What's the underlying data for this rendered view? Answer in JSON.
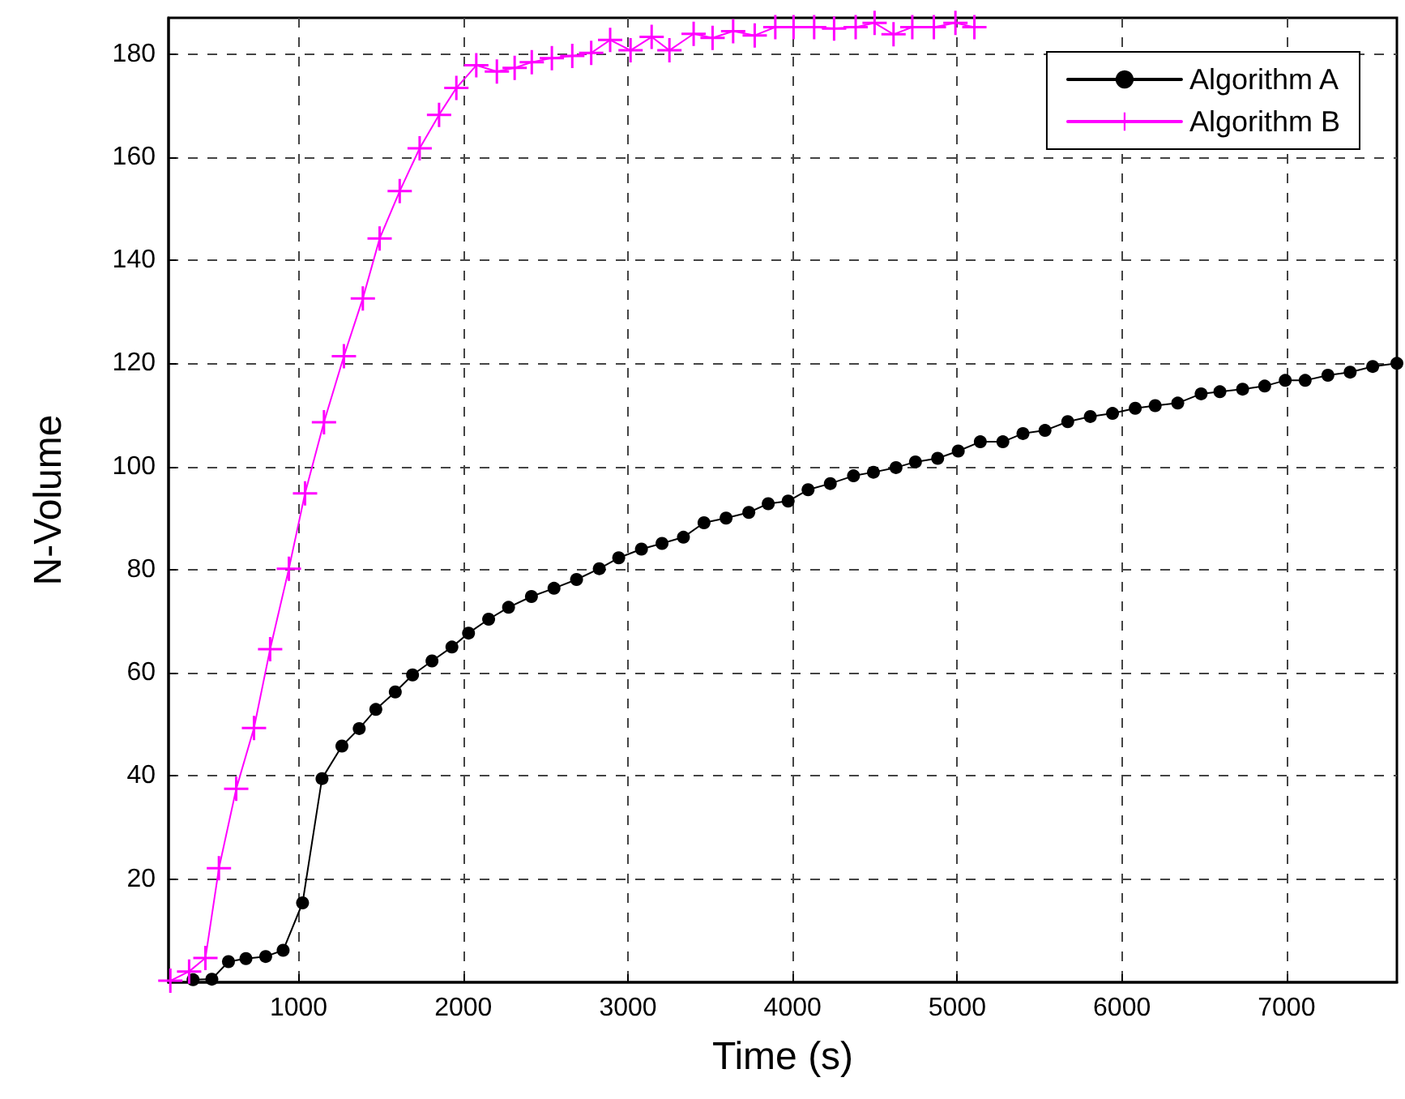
{
  "chart_data": {
    "type": "line",
    "xlabel": "Time (s)",
    "ylabel": "N-Volume",
    "xlim": [
      210,
      7670
    ],
    "xticks": [
      1000,
      2000,
      3000,
      4000,
      5000,
      6000,
      7000
    ],
    "ylim": [
      0,
      187
    ],
    "yticks": [
      20,
      40,
      60,
      80,
      100,
      120,
      140,
      160,
      180
    ],
    "grid": true,
    "legend": "top right",
    "line_style": "solid",
    "series": [
      {
        "name": "Algorithm A",
        "color": "#000000",
        "marker": "circle",
        "x": [
          359,
          473,
          574,
          680,
          800,
          906,
          1024,
          1142,
          1263,
          1368,
          1469,
          1587,
          1692,
          1810,
          1931,
          2032,
          2154,
          2275,
          2414,
          2551,
          2688,
          2826,
          2944,
          3082,
          3207,
          3337,
          3462,
          3596,
          3734,
          3852,
          3973,
          4094,
          4229,
          4370,
          4491,
          4628,
          4746,
          4881,
          5006,
          5140,
          5277,
          5399,
          5533,
          5671,
          5808,
          5943,
          6081,
          6202,
          6339,
          6481,
          6595,
          6733,
          6867,
          6992,
          7113,
          7251,
          7386,
          7523,
          7670
        ],
        "values": [
          0.5,
          0.6,
          4,
          4.6,
          5,
          6.2,
          15.4,
          39.5,
          45.8,
          49.2,
          52.9,
          56.3,
          59.6,
          62.3,
          65,
          67.7,
          70.4,
          72.7,
          74.8,
          76.4,
          78.1,
          80.2,
          82.3,
          84,
          85.1,
          86.3,
          89.1,
          90,
          91.1,
          92.8,
          93.3,
          95.5,
          96.7,
          98.2,
          98.9,
          99.8,
          100.9,
          101.6,
          103,
          104.8,
          104.8,
          106.4,
          107,
          108.7,
          109.7,
          110.3,
          111.3,
          111.8,
          112.3,
          114.1,
          114.5,
          115,
          115.6,
          116.7,
          116.7,
          117.7,
          118.3,
          119.4,
          120
        ]
      },
      {
        "name": "Algorithm B",
        "color": "#ff00ff",
        "marker": "cross",
        "x": [
          221,
          335,
          434,
          516,
          621,
          729,
          827,
          941,
          1039,
          1154,
          1275,
          1390,
          1492,
          1614,
          1735,
          1853,
          1958,
          2079,
          2204,
          2312,
          2416,
          2538,
          2662,
          2777,
          2892,
          3016,
          3144,
          3252,
          3399,
          3514,
          3639,
          3770,
          3895,
          4006,
          4131,
          4252,
          4383,
          4498,
          4613,
          4727,
          4858,
          4989,
          5104
        ],
        "values": [
          0.3,
          2.1,
          4.7,
          22.1,
          37.5,
          49.3,
          64.6,
          80.2,
          94.8,
          108.6,
          121.4,
          132.6,
          144.2,
          153.4,
          161.7,
          168.2,
          173.4,
          177.8,
          176.6,
          177.3,
          178.4,
          179.2,
          179.6,
          180.2,
          182.7,
          180.7,
          183.3,
          180.7,
          183.9,
          183.1,
          184.4,
          183.6,
          185.2,
          185.2,
          185.2,
          184.9,
          185.2,
          186,
          183.8,
          185.2,
          185.2,
          186,
          185.2
        ]
      }
    ]
  }
}
